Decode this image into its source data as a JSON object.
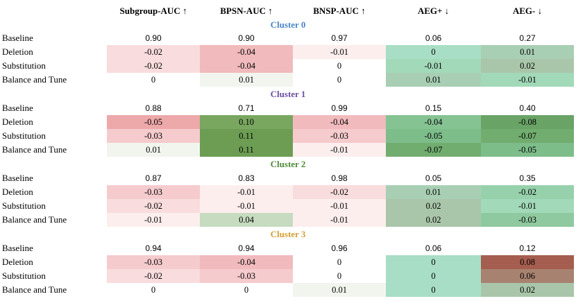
{
  "columns": [
    "Subgroup-AUC ↑",
    "BPSN-AUC ↑",
    "BNSP-AUC ↑",
    "AEG+ ↓",
    "AEG- ↓"
  ],
  "clusters": [
    {
      "title": "Cluster 0",
      "color": "#4a86c8",
      "rows": [
        {
          "label": "Baseline",
          "values": [
            "0.90",
            "0.90",
            "0.97",
            "0.06",
            "0.27"
          ],
          "fills": [
            "",
            "",
            "",
            "",
            ""
          ]
        },
        {
          "label": "Deletion",
          "values": [
            "-0.02",
            "-0.04",
            "-0.01",
            "0",
            "0.01"
          ],
          "fills": [
            "#f9dcdd",
            "#f1babd",
            "#fdeeee",
            "#a8dec5",
            "#a8cfb4"
          ]
        },
        {
          "label": "Substitution",
          "values": [
            "-0.02",
            "-0.04",
            "0",
            "-0.01",
            "0.02"
          ],
          "fills": [
            "#f9dcdd",
            "#f1babd",
            "",
            "#a2d9b9",
            "#aac6aa"
          ]
        },
        {
          "label": "Balance and Tune",
          "values": [
            "0",
            "0.01",
            "0",
            "0.01",
            "-0.01"
          ],
          "fills": [
            "",
            "#f2f5ee",
            "",
            "#a8cfb4",
            "#a2d9b9"
          ]
        }
      ]
    },
    {
      "title": "Cluster 1",
      "color": "#6a4fa3",
      "rows": [
        {
          "label": "Baseline",
          "values": [
            "0.88",
            "0.71",
            "0.99",
            "0.15",
            "0.40"
          ],
          "fills": [
            "",
            "",
            "",
            "",
            ""
          ]
        },
        {
          "label": "Deletion",
          "values": [
            "-0.05",
            "0.10",
            "-0.04",
            "-0.04",
            "-0.08"
          ],
          "fills": [
            "#eda8a9",
            "#79a760",
            "#f1babd",
            "#86c393",
            "#69a466"
          ]
        },
        {
          "label": "Substitution",
          "values": [
            "-0.03",
            "0.11",
            "-0.03",
            "-0.05",
            "-0.07"
          ],
          "fills": [
            "#f5cbcd",
            "#6c9d53",
            "#f5cbcd",
            "#7dbd8a",
            "#72ad70"
          ]
        },
        {
          "label": "Balance and Tune",
          "values": [
            "0.01",
            "0.11",
            "-0.01",
            "-0.07",
            "-0.05"
          ],
          "fills": [
            "#f2f5ee",
            "#6c9d53",
            "#fdeeee",
            "#72ad70",
            "#7dbd8a"
          ]
        }
      ]
    },
    {
      "title": "Cluster 2",
      "color": "#4f8a3a",
      "rows": [
        {
          "label": "Baseline",
          "values": [
            "0.87",
            "0.83",
            "0.98",
            "0.05",
            "0.35"
          ],
          "fills": [
            "",
            "",
            "",
            "",
            ""
          ]
        },
        {
          "label": "Deletion",
          "values": [
            "-0.03",
            "-0.01",
            "-0.02",
            "0.01",
            "-0.02"
          ],
          "fills": [
            "#f5cbcd",
            "#fdeeee",
            "#f9dcdd",
            "#a8cfb4",
            "#97d1ac"
          ]
        },
        {
          "label": "Substitution",
          "values": [
            "-0.02",
            "-0.01",
            "-0.01",
            "0.02",
            "-0.01"
          ],
          "fills": [
            "#f9dcdd",
            "#fdeeee",
            "#fdeeee",
            "#aac6aa",
            "#a2d9b9"
          ]
        },
        {
          "label": "Balance and Tune",
          "values": [
            "-0.01",
            "0.04",
            "-0.01",
            "0.02",
            "-0.03"
          ],
          "fills": [
            "#fdeeee",
            "#c6dbbf",
            "#fdeeee",
            "#aac6aa",
            "#8fc99f"
          ]
        }
      ]
    },
    {
      "title": "Cluster 3",
      "color": "#d4a032",
      "rows": [
        {
          "label": "Baseline",
          "values": [
            "0.94",
            "0.94",
            "0.96",
            "0.06",
            "0.12"
          ],
          "fills": [
            "",
            "",
            "",
            "",
            ""
          ]
        },
        {
          "label": "Deletion",
          "values": [
            "-0.03",
            "-0.04",
            "0",
            "0",
            "0.08"
          ],
          "fills": [
            "#f5cbcd",
            "#f1babd",
            "",
            "#a8dec5",
            "#a55d4f"
          ]
        },
        {
          "label": "Substitution",
          "values": [
            "-0.02",
            "-0.03",
            "0",
            "0",
            "0.06"
          ],
          "fills": [
            "#f9dcdd",
            "#f5cbcd",
            "",
            "#a8dec5",
            "#a88270"
          ]
        },
        {
          "label": "Balance and Tune",
          "values": [
            "0",
            "0",
            "0.01",
            "0",
            "0.02"
          ],
          "fills": [
            "",
            "",
            "#f2f5ee",
            "#a8dec5",
            "#aac6aa"
          ]
        }
      ]
    }
  ]
}
